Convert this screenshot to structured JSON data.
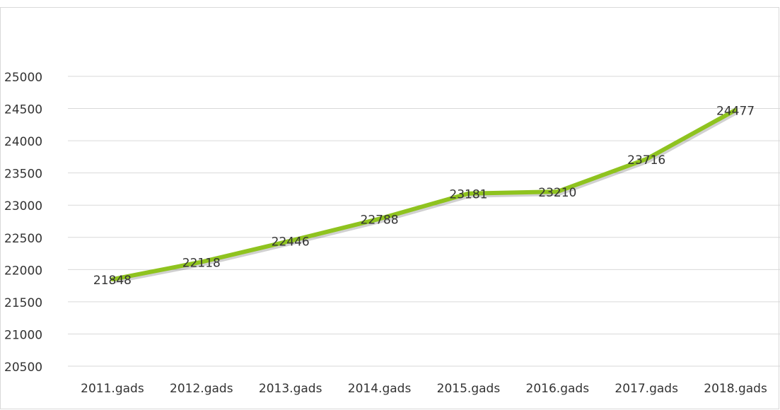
{
  "chart_data": {
    "type": "line",
    "categories": [
      "2011.gads",
      "2012.gads",
      "2013.gads",
      "2014.gads",
      "2015.gads",
      "2016.gads",
      "2017.gads",
      "2018.gads"
    ],
    "series": [
      {
        "color": "#8fc31f",
        "values": [
          21848,
          22118,
          22446,
          22788,
          23181,
          23210,
          23716,
          24477
        ]
      }
    ],
    "ylim": [
      20500,
      25000
    ],
    "yticks": [
      20500,
      21000,
      21500,
      22000,
      22500,
      23000,
      23500,
      24000,
      24500,
      25000
    ],
    "grid": true
  }
}
